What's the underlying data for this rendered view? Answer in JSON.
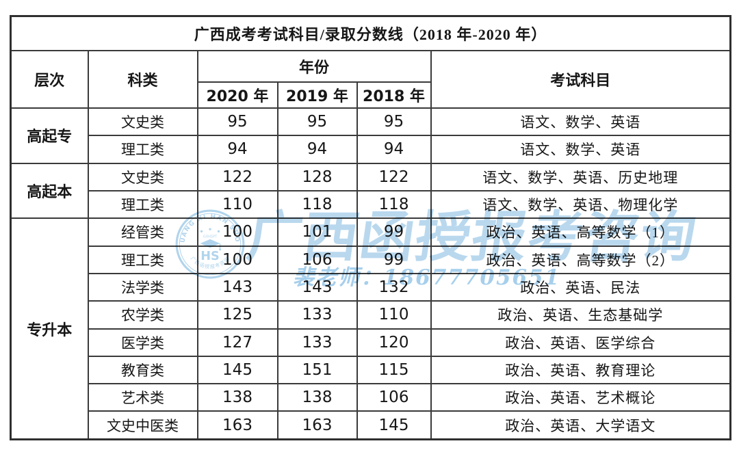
{
  "title": "广西成考考试科目/录取分数线（2018 年-2020 年）",
  "table": {
    "headers": {
      "level": "层次",
      "category": "科类",
      "year_group": "年份",
      "years": [
        "2020 年",
        "2019 年",
        "2018 年"
      ],
      "subjects": "考试科目"
    },
    "sections": [
      {
        "level": "高起专",
        "rows": [
          {
            "category": "文史类",
            "scores": [
              "95",
              "95",
              "95"
            ],
            "subjects": "语文、数学、英语"
          },
          {
            "category": "理工类",
            "scores": [
              "94",
              "94",
              "94"
            ],
            "subjects": "语文、数学、英语"
          }
        ]
      },
      {
        "level": "高起本",
        "rows": [
          {
            "category": "文史类",
            "scores": [
              "122",
              "128",
              "122"
            ],
            "subjects": "语文、数学、英语、历史地理"
          },
          {
            "category": "理工类",
            "scores": [
              "110",
              "118",
              "118"
            ],
            "subjects": "语文、数学、英语、物理化学"
          }
        ]
      },
      {
        "level": "专升本",
        "rows": [
          {
            "category": "经管类",
            "scores": [
              "100",
              "101",
              "99"
            ],
            "subjects": "政治、英语、高等数学（1）"
          },
          {
            "category": "理工类",
            "scores": [
              "100",
              "106",
              "99"
            ],
            "subjects": "政治、英语、高等数学（2）"
          },
          {
            "category": "法学类",
            "scores": [
              "143",
              "143",
              "132"
            ],
            "subjects": "政治、英语、民法"
          },
          {
            "category": "农学类",
            "scores": [
              "125",
              "133",
              "110"
            ],
            "subjects": "政治、英语、生态基础学"
          },
          {
            "category": "医学类",
            "scores": [
              "127",
              "133",
              "120"
            ],
            "subjects": "政治、英语、医学综合"
          },
          {
            "category": "教育类",
            "scores": [
              "145",
              "151",
              "115"
            ],
            "subjects": "政治、英语、教育理论"
          },
          {
            "category": "艺术类",
            "scores": [
              "138",
              "138",
              "106"
            ],
            "subjects": "政治、英语、艺术概论"
          },
          {
            "category": "文史中医类",
            "scores": [
              "163",
              "163",
              "145"
            ],
            "subjects": "政治、英语、大学语文"
          }
        ]
      }
    ]
  },
  "watermark": {
    "brand_text": "广西函授报考咨询",
    "contact_text": "裴老师：18677705651",
    "color": "#b9d8ee",
    "logo": {
      "arc_text_top": "GUANG XI HAN SHOU",
      "abbr_text": "GXHSPT",
      "monogram": "HS",
      "arc_text_bottom": "广西函授报考咨询"
    }
  },
  "chart_data": {
    "type": "table",
    "title": "广西成考考试科目/录取分数线（2018 年-2020 年）",
    "columns": [
      "层次",
      "科类",
      "2020 年",
      "2019 年",
      "2018 年",
      "考试科目"
    ],
    "rows": [
      [
        "高起专",
        "文史类",
        95,
        95,
        95,
        "语文、数学、英语"
      ],
      [
        "高起专",
        "理工类",
        94,
        94,
        94,
        "语文、数学、英语"
      ],
      [
        "高起本",
        "文史类",
        122,
        128,
        122,
        "语文、数学、英语、历史地理"
      ],
      [
        "高起本",
        "理工类",
        110,
        118,
        118,
        "语文、数学、英语、物理化学"
      ],
      [
        "专升本",
        "经管类",
        100,
        101,
        99,
        "政治、英语、高等数学（1）"
      ],
      [
        "专升本",
        "理工类",
        100,
        106,
        99,
        "政治、英语、高等数学（2）"
      ],
      [
        "专升本",
        "法学类",
        143,
        143,
        132,
        "政治、英语、民法"
      ],
      [
        "专升本",
        "农学类",
        125,
        133,
        110,
        "政治、英语、生态基础学"
      ],
      [
        "专升本",
        "医学类",
        127,
        133,
        120,
        "政治、英语、医学综合"
      ],
      [
        "专升本",
        "教育类",
        145,
        151,
        115,
        "政治、英语、教育理论"
      ],
      [
        "专升本",
        "艺术类",
        138,
        138,
        106,
        "政治、英语、艺术概论"
      ],
      [
        "专升本",
        "文史中医类",
        163,
        163,
        145,
        "政治、英语、大学语文"
      ]
    ]
  }
}
